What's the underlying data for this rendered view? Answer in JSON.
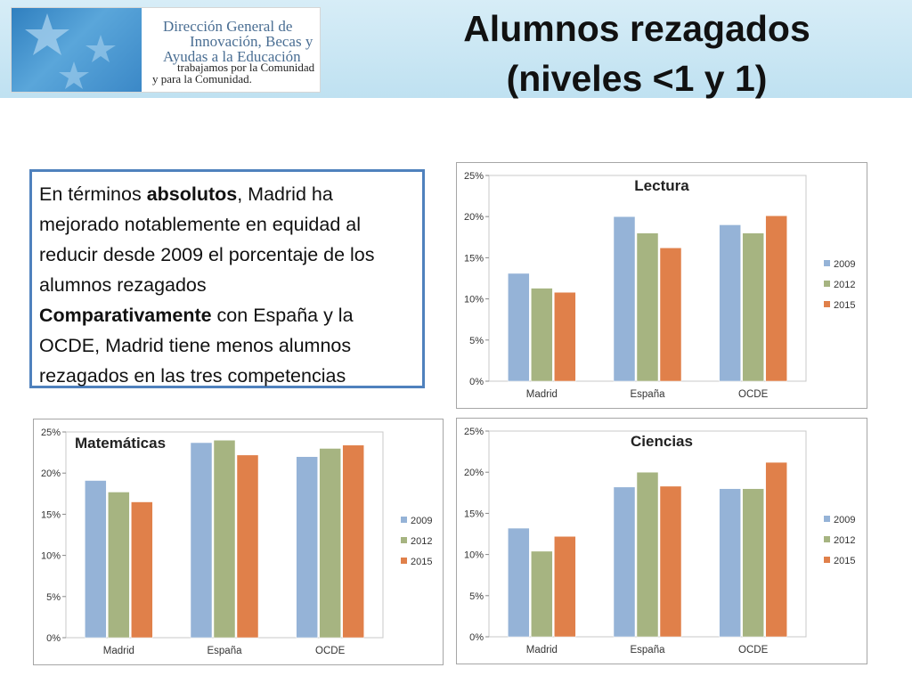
{
  "logo": {
    "lines": [
      "Dirección General de",
      "Innovación, Becas y",
      "Ayudas a la Educación"
    ],
    "slogan": [
      "trabajamos por la Comunidad",
      "y para la Comunidad."
    ]
  },
  "title": [
    "Alumnos rezagados",
    "(niveles <1 y 1)"
  ],
  "textbox": {
    "p1_a": "En términos ",
    "p1_bold": "absolutos",
    "p1_b": ", Madrid ha mejorado notablemente en equidad al reducir desde 2009 el porcentaje de los alumnos rezagados",
    "p2_bold": "Comparativamente",
    "p2_b": " con España y la OCDE, Madrid tiene menos alumnos rezagados en las tres competencias"
  },
  "colors": {
    "2009": "#95b3d7",
    "2012": "#a6b481",
    "2015": "#e0804a"
  },
  "chart_data": [
    {
      "id": "lectura",
      "type": "bar",
      "title": "Lectura",
      "categories": [
        "Madrid",
        "España",
        "OCDE"
      ],
      "series": [
        {
          "name": "2009",
          "values": [
            13.1,
            20.0,
            19.0
          ]
        },
        {
          "name": "2012",
          "values": [
            11.3,
            18.0,
            18.0
          ]
        },
        {
          "name": "2015",
          "values": [
            10.8,
            16.2,
            20.1
          ]
        }
      ],
      "yticks": [
        "0%",
        "5%",
        "10%",
        "15%",
        "20%",
        "25%"
      ],
      "ylim": [
        0,
        25
      ],
      "legend": "right"
    },
    {
      "id": "matematicas",
      "type": "bar",
      "title": "Matemáticas",
      "categories": [
        "Madrid",
        "España",
        "OCDE"
      ],
      "series": [
        {
          "name": "2009",
          "values": [
            19.1,
            23.7,
            22.0
          ]
        },
        {
          "name": "2012",
          "values": [
            17.7,
            24.0,
            23.0
          ]
        },
        {
          "name": "2015",
          "values": [
            16.5,
            22.2,
            23.4
          ]
        }
      ],
      "yticks": [
        "0%",
        "5%",
        "10%",
        "15%",
        "20%",
        "25%"
      ],
      "ylim": [
        0,
        25
      ],
      "legend": "right"
    },
    {
      "id": "ciencias",
      "type": "bar",
      "title": "Ciencias",
      "categories": [
        "Madrid",
        "España",
        "OCDE"
      ],
      "series": [
        {
          "name": "2009",
          "values": [
            13.2,
            18.2,
            18.0
          ]
        },
        {
          "name": "2012",
          "values": [
            10.4,
            20.0,
            18.0
          ]
        },
        {
          "name": "2015",
          "values": [
            12.2,
            18.3,
            21.2
          ]
        }
      ],
      "yticks": [
        "0%",
        "5%",
        "10%",
        "15%",
        "20%",
        "25%"
      ],
      "ylim": [
        0,
        25
      ],
      "legend": "right"
    }
  ]
}
